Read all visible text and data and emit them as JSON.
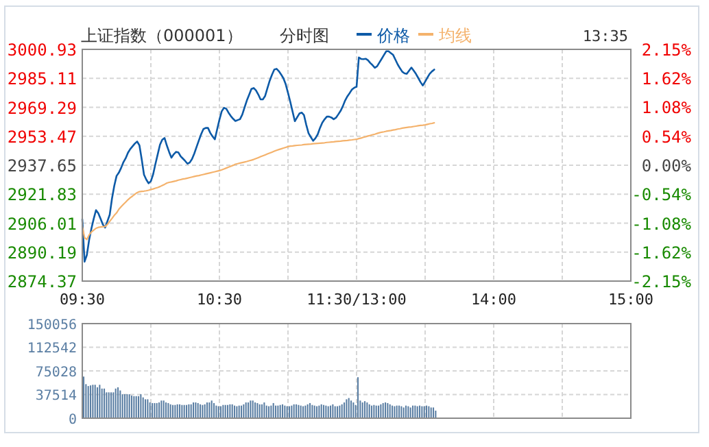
{
  "chart_data": [
    {
      "type": "line",
      "title": "上证指数（000001）",
      "subtitle": "分时图",
      "annotations": [
        "13:35"
      ],
      "legend": "top",
      "grid": true,
      "categories": [
        "09:30",
        null,
        null,
        null,
        null,
        null,
        null,
        null,
        null,
        null,
        null,
        null,
        null,
        null,
        null,
        null,
        null,
        null,
        null,
        null,
        null,
        null,
        null,
        null,
        null,
        null,
        null,
        null,
        null,
        null,
        null,
        null,
        null,
        null,
        null,
        null,
        null,
        null,
        null,
        null,
        null,
        null,
        null,
        null,
        null,
        null,
        null,
        null,
        null,
        null,
        null,
        null,
        null,
        null,
        null,
        null,
        null,
        null,
        null,
        null,
        "10:30",
        null,
        null,
        null,
        null,
        null,
        null,
        null,
        null,
        null,
        null,
        null,
        null,
        null,
        null,
        null,
        null,
        null,
        null,
        null,
        null,
        null,
        null,
        null,
        null,
        null,
        null,
        null,
        null,
        null,
        null,
        null,
        null,
        null,
        null,
        null,
        null,
        null,
        null,
        null,
        null,
        null,
        null,
        null,
        null,
        null,
        null,
        null,
        null,
        null,
        null,
        null,
        null,
        null,
        null,
        null,
        null,
        null,
        null,
        null,
        "11:30/13:00",
        null,
        null,
        null,
        null,
        null,
        null,
        null,
        null,
        null,
        null,
        null,
        null,
        null,
        null,
        null,
        null,
        null,
        null,
        null,
        null,
        null,
        null,
        null,
        null,
        null,
        null,
        null,
        null,
        null,
        null,
        null,
        null,
        null,
        null,
        null,
        null,
        null,
        null,
        null,
        null,
        null,
        null,
        null,
        null,
        null,
        null,
        null,
        null,
        null,
        null,
        null,
        null,
        null,
        null,
        null,
        null,
        null,
        null,
        null,
        "14:00",
        null,
        null,
        null,
        null,
        null,
        null,
        null,
        null,
        null,
        null,
        null,
        null,
        null,
        null,
        null,
        null,
        null,
        null,
        null,
        null,
        null,
        null,
        null,
        null,
        null,
        null,
        null,
        null,
        null,
        null,
        null,
        null,
        null,
        null,
        null,
        null,
        null,
        null,
        null,
        null,
        null,
        null,
        null,
        null,
        null,
        null,
        null,
        null,
        null,
        null,
        null,
        null,
        null,
        null,
        null,
        null,
        null,
        null,
        null,
        "15:00"
      ],
      "ylim": [
        2874.37,
        3000.93
      ],
      "yticks": [
        2874.37,
        2890.19,
        2906.01,
        2921.83,
        2937.65,
        2953.47,
        2969.29,
        2985.11,
        3000.93
      ],
      "y2lim": [
        -2.15,
        2.15
      ],
      "y2ticks": [
        {
          "value": -2.15,
          "label": "-2.15%"
        },
        {
          "value": -1.62,
          "label": "-1.62%"
        },
        {
          "value": -1.08,
          "label": "-1.08%"
        },
        {
          "value": -0.54,
          "label": "-0.54%"
        },
        {
          "value": 0,
          "label": "0.00%"
        },
        {
          "value": 0.54,
          "label": "0.54%"
        },
        {
          "value": 1.08,
          "label": "1.08%"
        },
        {
          "value": 1.62,
          "label": "1.62%"
        },
        {
          "value": 2.15,
          "label": "2.15%"
        }
      ],
      "series": [
        {
          "name": "价格",
          "color": "#0d5aa7",
          "values": [
            2908.1,
            2885.0,
            2888.6,
            2896.9,
            2903.1,
            2908.4,
            2913.1,
            2911.4,
            2908.4,
            2905.3,
            2903.6,
            2907.1,
            2910.6,
            2919.5,
            2926.4,
            2931.8,
            2933.6,
            2936.2,
            2939.3,
            2941.5,
            2944.5,
            2946.5,
            2948.0,
            2949.5,
            2950.6,
            2948.5,
            2940.9,
            2932.5,
            2929.8,
            2927.8,
            2928.9,
            2932.7,
            2938.3,
            2943.6,
            2948.9,
            2951.6,
            2952.5,
            2948.4,
            2944.9,
            2941.8,
            2943.6,
            2944.9,
            2944.7,
            2942.6,
            2941.3,
            2940.0,
            2938.5,
            2939.1,
            2941.0,
            2944.0,
            2947.6,
            2951.2,
            2954.6,
            2957.4,
            2958.0,
            2958.0,
            2955.3,
            2953.4,
            2951.8,
            2957.2,
            2962.5,
            2967.1,
            2969.0,
            2968.5,
            2966.3,
            2964.5,
            2963.0,
            2961.8,
            2962.3,
            2962.8,
            2965.3,
            2969.2,
            2973.0,
            2976.1,
            2979.3,
            2979.8,
            2978.5,
            2976.3,
            2973.6,
            2973.6,
            2975.5,
            2979.7,
            2983.8,
            2987.1,
            2989.9,
            2990.3,
            2989.0,
            2987.2,
            2985.1,
            2981.9,
            2977.2,
            2972.3,
            2967.0,
            2961.7,
            2963.8,
            2965.9,
            2966.4,
            2965.0,
            2959.7,
            2955.1,
            2953.0,
            2951.0,
            2952.4,
            2954.5,
            2958.0,
            2960.9,
            2962.7,
            2964.2,
            2964.2,
            2963.7,
            2962.8,
            2963.6,
            2965.4,
            2967.3,
            2969.9,
            2973.0,
            2975.3,
            2977.1,
            2979.0,
            2980.0,
            2980.5,
            2996.5,
            2995.7,
            2995.6,
            2995.8,
            2995.0,
            2993.5,
            2992.3,
            2990.9,
            2991.7,
            2993.8,
            2995.8,
            2997.9,
            2999.9,
            2999.9,
            2998.9,
            2997.9,
            2995.3,
            2992.7,
            2990.6,
            2988.7,
            2987.8,
            2987.6,
            2989.3,
            2991.0,
            2989.3,
            2987.5,
            2985.3,
            2983.0,
            2981.2,
            2983.3,
            2985.5,
            2987.6,
            2988.9,
            2989.9,
            null,
            null,
            null,
            null,
            null,
            null,
            null,
            null,
            null,
            null,
            null,
            null,
            null,
            null,
            null,
            null,
            null,
            null,
            null,
            null,
            null,
            null,
            null,
            null,
            null,
            null,
            null,
            null,
            null,
            null,
            null,
            null,
            null,
            null,
            null,
            null,
            null,
            null,
            null,
            null,
            null,
            null,
            null,
            null,
            null,
            null,
            null,
            null,
            null,
            null,
            null,
            null,
            null,
            null,
            null,
            null,
            null,
            null,
            null,
            null,
            null,
            null,
            null,
            null,
            null,
            null,
            null,
            null,
            null,
            null,
            null,
            null,
            null,
            null,
            null,
            null,
            null,
            null,
            null,
            null,
            null,
            null,
            null,
            null,
            null,
            null
          ]
        },
        {
          "name": "均线",
          "color": "#f4b26c",
          "values": [
            2904.3,
            2898.1,
            2897.1,
            2899.6,
            2901.2,
            2902.2,
            2903.2,
            2903.7,
            2903.9,
            2904.1,
            2904.2,
            2905.3,
            2907.0,
            2908.6,
            2910.3,
            2911.6,
            2913.6,
            2915.0,
            2916.3,
            2917.5,
            2918.8,
            2919.9,
            2920.8,
            2921.8,
            2922.7,
            2923.2,
            2923.4,
            2923.5,
            2923.7,
            2924.0,
            2924.4,
            2924.7,
            2925.1,
            2925.5,
            2926.0,
            2926.6,
            2927.2,
            2927.9,
            2928.3,
            2928.5,
            2928.8,
            2929.1,
            2929.5,
            2929.8,
            2930.1,
            2930.3,
            2930.6,
            2930.9,
            2931.2,
            2931.5,
            2931.8,
            2932.0,
            2932.3,
            2932.6,
            2932.9,
            2933.2,
            2933.5,
            2933.8,
            2934.1,
            2934.4,
            2934.7,
            2935.1,
            2935.6,
            2936.1,
            2936.6,
            2937.1,
            2937.6,
            2938.2,
            2938.5,
            2938.8,
            2939.1,
            2939.4,
            2939.7,
            2940.1,
            2940.4,
            2940.8,
            2941.3,
            2941.8,
            2942.3,
            2942.8,
            2943.3,
            2943.8,
            2944.3,
            2944.8,
            2945.3,
            2945.8,
            2946.2,
            2946.6,
            2947.0,
            2947.4,
            2947.8,
            2948.1,
            2948.2,
            2948.4,
            2948.5,
            2948.6,
            2948.7,
            2948.9,
            2949.0,
            2949.1,
            2949.2,
            2949.4,
            2949.5,
            2949.6,
            2949.7,
            2949.8,
            2949.9,
            2950.1,
            2950.2,
            2950.3,
            2950.4,
            2950.6,
            2950.7,
            2950.8,
            2951.0,
            2951.1,
            2951.2,
            2951.4,
            2951.5,
            2951.7,
            2951.8,
            2952.2,
            2952.5,
            2952.9,
            2953.2,
            2953.6,
            2953.9,
            2954.3,
            2954.6,
            2955.0,
            2955.4,
            2955.7,
            2955.9,
            2956.2,
            2956.4,
            2956.6,
            2956.9,
            2957.1,
            2957.4,
            2957.6,
            2957.9,
            2958.1,
            2958.3,
            2958.5,
            2958.6,
            2958.8,
            2959.0,
            2959.2,
            2959.4,
            2959.5,
            2959.7,
            2960.0,
            2960.3,
            2960.5,
            2960.8,
            null,
            null,
            null,
            null,
            null,
            null,
            null,
            null,
            null,
            null,
            null,
            null,
            null,
            null,
            null,
            null,
            null,
            null,
            null,
            null,
            null,
            null,
            null,
            null,
            null,
            null,
            null,
            null,
            null,
            null,
            null,
            null,
            null,
            null,
            null,
            null,
            null,
            null,
            null,
            null,
            null,
            null,
            null,
            null,
            null,
            null,
            null,
            null,
            null,
            null,
            null,
            null,
            null,
            null,
            null,
            null,
            null,
            null,
            null,
            null,
            null,
            null,
            null,
            null,
            null,
            null,
            null,
            null,
            null,
            null,
            null,
            null,
            null,
            null,
            null,
            null,
            null,
            null,
            null,
            null,
            null,
            null,
            null,
            null,
            null,
            null
          ]
        }
      ]
    },
    {
      "type": "bar",
      "color": "#5a7ea3",
      "grid": true,
      "tick_labels": "y",
      "categories": [
        null,
        null,
        null,
        null,
        null,
        null,
        null,
        null,
        null,
        null,
        null,
        null,
        null,
        null,
        null,
        null,
        null,
        null,
        null,
        null,
        null,
        null,
        null,
        null,
        null,
        null,
        null,
        null,
        null,
        null,
        null,
        null,
        null,
        null,
        null,
        null,
        null,
        null,
        null,
        null,
        null,
        null,
        null,
        null,
        null,
        null,
        null,
        null,
        null,
        null,
        null,
        null,
        null,
        null,
        null,
        null,
        null,
        null,
        null,
        null,
        null,
        null,
        null,
        null,
        null,
        null,
        null,
        null,
        null,
        null,
        null,
        null,
        null,
        null,
        null,
        null,
        null,
        null,
        null,
        null,
        null,
        null,
        null,
        null,
        null,
        null,
        null,
        null,
        null,
        null,
        null,
        null,
        null,
        null,
        null,
        null,
        null,
        null,
        null,
        null,
        null,
        null,
        null,
        null,
        null,
        null,
        null,
        null,
        null,
        null,
        null,
        null,
        null,
        null,
        null,
        null,
        null,
        null,
        null,
        null,
        null,
        null,
        null,
        null,
        null,
        null,
        null,
        null,
        null,
        null,
        null,
        null,
        null,
        null,
        null,
        null,
        null,
        null,
        null,
        null,
        null,
        null,
        null,
        null,
        null,
        null,
        null,
        null,
        null,
        null,
        null,
        null,
        null,
        null,
        null,
        null,
        null,
        null,
        null,
        null,
        null,
        null,
        null,
        null,
        null,
        null,
        null,
        null,
        null,
        null,
        null,
        null,
        null,
        null,
        null,
        null,
        null,
        null,
        null,
        null,
        null,
        null,
        null,
        null,
        null,
        null,
        null,
        null,
        null,
        null,
        null,
        null,
        null,
        null,
        null,
        null,
        null,
        null,
        null,
        null,
        null,
        null,
        null,
        null,
        null,
        null,
        null,
        null,
        null,
        null,
        null,
        null,
        null,
        null,
        null,
        null,
        null,
        null,
        null,
        null,
        null,
        null,
        null,
        null,
        null,
        null,
        null,
        null,
        null,
        null,
        null,
        null,
        null,
        null,
        null,
        null,
        null,
        null,
        null,
        null,
        null
      ],
      "ylim": [
        0,
        150056
      ],
      "yticks": [
        0,
        37514,
        75028,
        112542,
        150056
      ],
      "values": [
        66000,
        54000,
        51000,
        52000,
        53000,
        53000,
        49000,
        53000,
        47000,
        47000,
        41000,
        41000,
        41000,
        41000,
        47000,
        49000,
        44000,
        38000,
        38000,
        38000,
        38000,
        36000,
        35000,
        35000,
        35000,
        38000,
        33000,
        30000,
        30000,
        25000,
        24000,
        24000,
        24000,
        25000,
        28000,
        28000,
        25000,
        24000,
        22000,
        21000,
        21000,
        22000,
        22000,
        21000,
        21000,
        21000,
        22000,
        22000,
        25000,
        25000,
        24000,
        22000,
        21000,
        22000,
        25000,
        25000,
        28000,
        24000,
        20000,
        19000,
        19000,
        21000,
        21000,
        21000,
        22000,
        22000,
        20000,
        19000,
        20000,
        20000,
        22000,
        25000,
        25000,
        28000,
        28000,
        25000,
        24000,
        22000,
        22000,
        25000,
        20000,
        19000,
        20000,
        24000,
        20000,
        20000,
        21000,
        22000,
        20000,
        19000,
        19000,
        20000,
        22000,
        22000,
        21000,
        20000,
        19000,
        20000,
        22000,
        24000,
        21000,
        20000,
        19000,
        20000,
        22000,
        21000,
        20000,
        19000,
        20000,
        22000,
        19000,
        19000,
        20000,
        22000,
        25000,
        30000,
        32000,
        28000,
        25000,
        21000,
        65000,
        28000,
        25000,
        27000,
        25000,
        22000,
        20000,
        21000,
        20000,
        20000,
        22000,
        24000,
        25000,
        24000,
        22000,
        20000,
        19000,
        20000,
        20000,
        19000,
        17000,
        20000,
        19000,
        17000,
        20000,
        20000,
        19000,
        20000,
        19000,
        19000,
        20000,
        19000,
        17000,
        17000,
        12000,
        null,
        null,
        null,
        null,
        null,
        null,
        null,
        null,
        null,
        null,
        null,
        null,
        null,
        null,
        null,
        null,
        null,
        null,
        null,
        null,
        null,
        null,
        null,
        null,
        null,
        null,
        null,
        null,
        null,
        null,
        null,
        null,
        null,
        null,
        null,
        null,
        null,
        null,
        null,
        null,
        null,
        null,
        null,
        null,
        null,
        null,
        null,
        null,
        null,
        null,
        null,
        null,
        null,
        null,
        null,
        null,
        null,
        null,
        null,
        null,
        null,
        null,
        null,
        null,
        null,
        null,
        null,
        null,
        null,
        null,
        null,
        null,
        null,
        null,
        null,
        null,
        null,
        null,
        null,
        null,
        null,
        null,
        null,
        null,
        null,
        null
      ]
    }
  ]
}
